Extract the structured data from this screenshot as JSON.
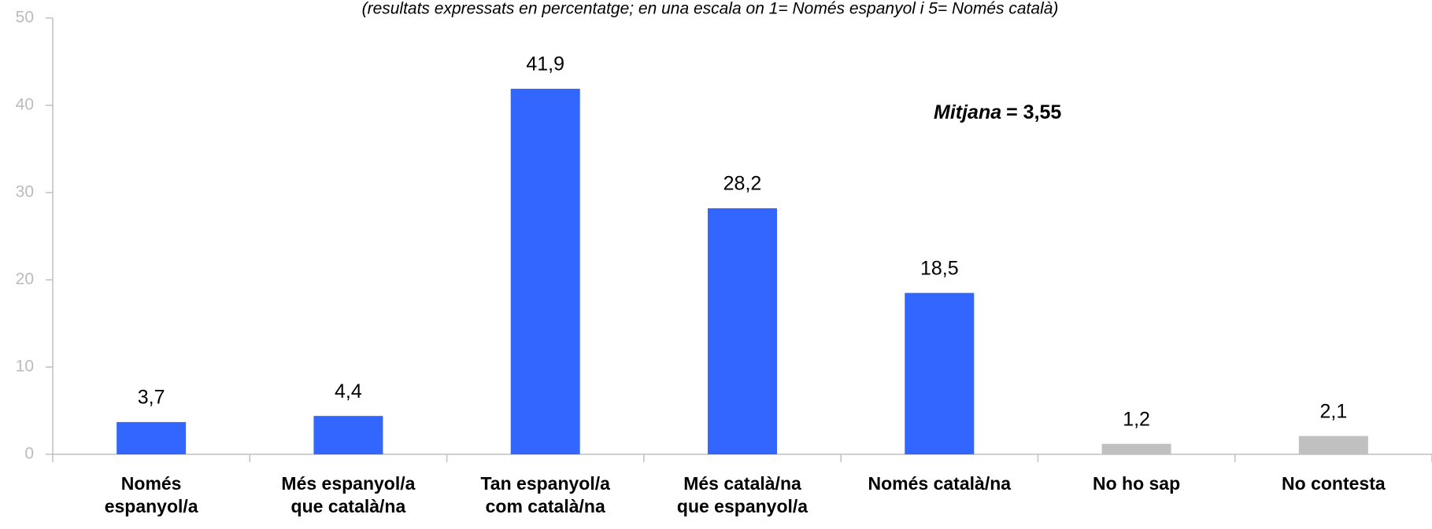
{
  "chart_data": {
    "type": "bar",
    "subtitle": "(resultats expressats en percentatge; en una escala on 1= Només espanyol i 5= Només català)",
    "annotation": [
      "Mitjana",
      "= 3,55"
    ],
    "categories": [
      "Només\nespanyol/a",
      "Més espanyol/a\nque català/na",
      "Tan espanyol/a\ncom català/na",
      "Més català/na\nque espanyol/a",
      "Només català/na",
      "No ho sap",
      "No contesta"
    ],
    "values": [
      3.7,
      4.4,
      41.9,
      28.2,
      18.5,
      1.2,
      2.1
    ],
    "value_labels": [
      "3,7",
      "4,4",
      "41,9",
      "28,2",
      "18,5",
      "1,2",
      "2,1"
    ],
    "colors": [
      "#3366ff",
      "#3366ff",
      "#3366ff",
      "#3366ff",
      "#3366ff",
      "#c0c0c0",
      "#c0c0c0"
    ],
    "ylim": [
      0,
      50
    ],
    "yticks": [
      0,
      10,
      20,
      30,
      40,
      50
    ],
    "grid": false
  }
}
